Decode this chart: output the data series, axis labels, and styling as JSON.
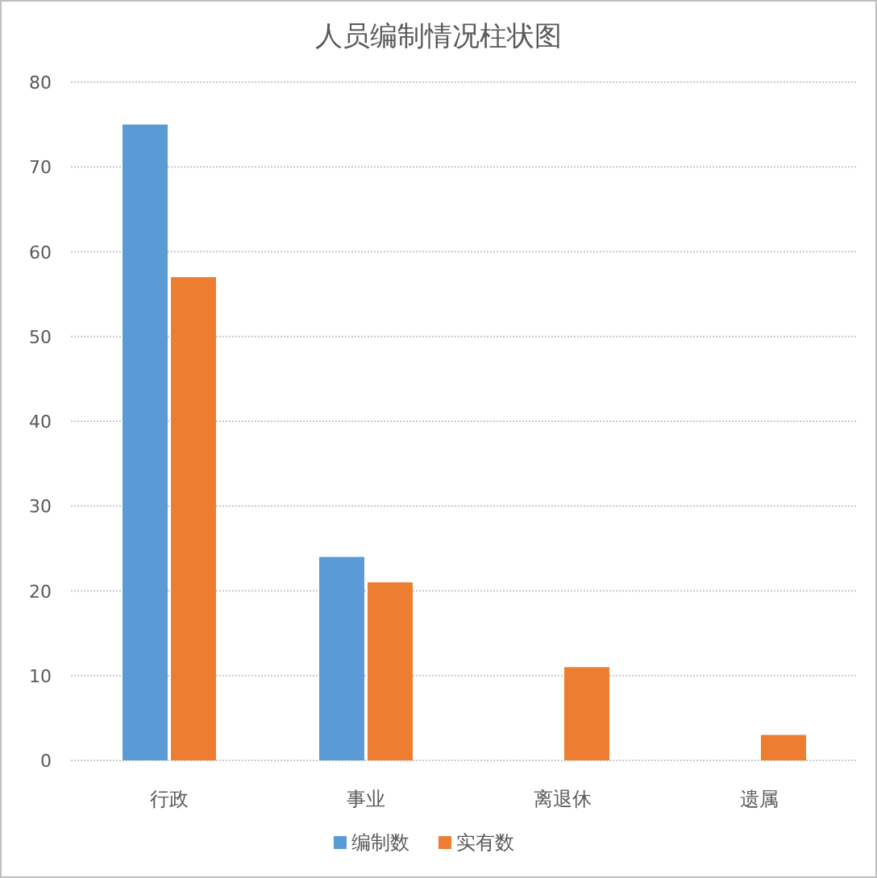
{
  "chart_data": {
    "type": "bar",
    "title": "人员编制情况柱状图",
    "categories": [
      "行政",
      "事业",
      "离退休",
      "遗属"
    ],
    "series": [
      {
        "name": "编制数",
        "color": "#5b9bd5",
        "values": [
          75,
          24,
          null,
          null
        ]
      },
      {
        "name": "实有数",
        "color": "#ed7d31",
        "values": [
          57,
          21,
          11,
          3
        ]
      }
    ],
    "ylim": [
      0,
      80
    ],
    "yticks": [
      0,
      10,
      20,
      30,
      40,
      50,
      60,
      70,
      80
    ],
    "grid": "y",
    "legend": "bottom"
  }
}
